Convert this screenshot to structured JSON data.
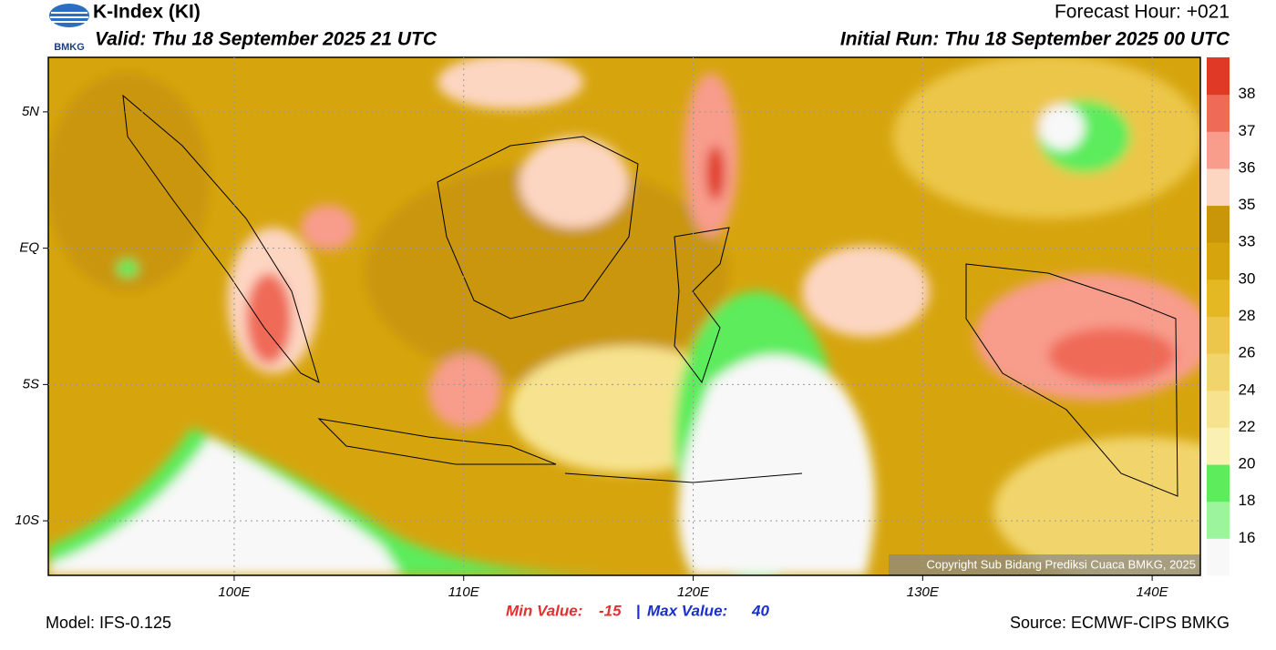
{
  "header": {
    "title": "K-Index (KI)",
    "valid": "Valid: Thu 18 September 2025 21 UTC",
    "forecast_hour": "Forecast Hour: +021",
    "initial_run": "Initial Run: Thu 18 September 2025 00 UTC",
    "logo": "BMKG"
  },
  "map": {
    "lon_range": [
      91.9,
      142.1
    ],
    "lat_range": [
      -12,
      7
    ],
    "lat_ticks": [
      {
        "value": 5,
        "label": "5N"
      },
      {
        "value": 0,
        "label": "EQ"
      },
      {
        "value": -5,
        "label": "5S"
      },
      {
        "value": -10,
        "label": "10S"
      }
    ],
    "lon_ticks": [
      {
        "value": 100,
        "label": "100E"
      },
      {
        "value": 110,
        "label": "110E"
      },
      {
        "value": 120,
        "label": "120E"
      },
      {
        "value": 130,
        "label": "130E"
      },
      {
        "value": 140,
        "label": "140E"
      }
    ],
    "copyright": "Copyright Sub Bidang Prediksi Cuaca BMKG, 2025"
  },
  "colorbar": {
    "ticks": [
      16,
      18,
      20,
      22,
      24,
      26,
      28,
      30,
      33,
      35,
      36,
      37,
      38
    ],
    "colors": [
      "#f8f8f8",
      "#9cf59c",
      "#5cec5c",
      "#fbf0b4",
      "#f7e38f",
      "#f1d46c",
      "#ecc64a",
      "#e4b822",
      "#d6a50e",
      "#c9960a",
      "#fdd6c2",
      "#f89c8c",
      "#f06a58",
      "#e03a26"
    ]
  },
  "footer": {
    "model": "Model: IFS-0.125",
    "min_label": "Min Value:",
    "min_value": -15,
    "separator": "|",
    "max_label": "Max Value:",
    "max_value": 40,
    "source": "Source: ECMWF-CIPS BMKG"
  }
}
